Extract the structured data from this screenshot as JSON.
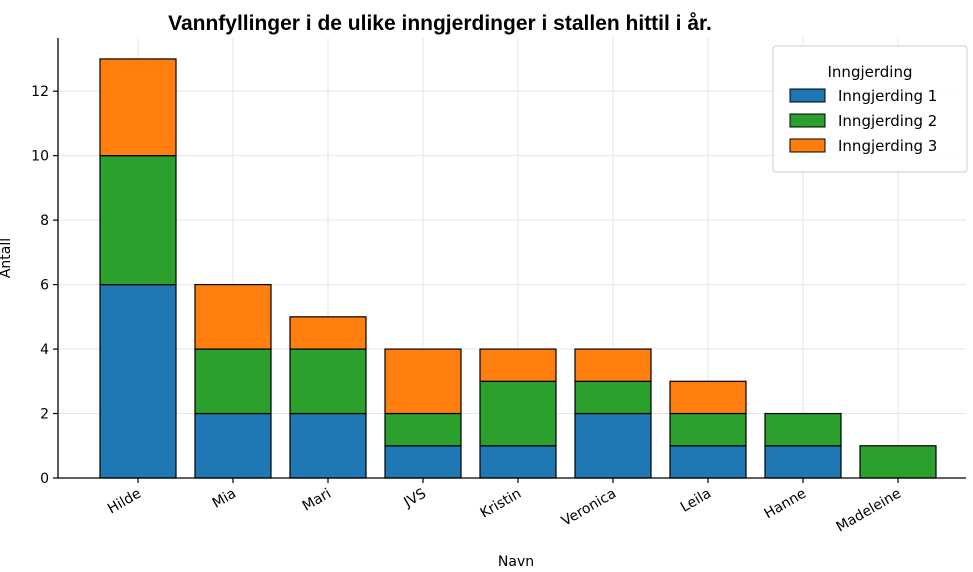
{
  "chart_data": {
    "type": "bar",
    "stacked": true,
    "title": "Vannfyllinger i de ulike inngjerdinger i stallen hittil i år.",
    "xlabel": "Navn",
    "ylabel": "Antall",
    "categories": [
      "Hilde",
      "Mia",
      "Mari",
      "JVS",
      "Kristin",
      "Veronica",
      "Leila",
      "Hanne",
      "Madeleine"
    ],
    "series": [
      {
        "name": "Inngjerding 1",
        "color": "#1f77b4",
        "values": [
          6,
          2,
          2,
          1,
          1,
          2,
          1,
          1,
          0
        ]
      },
      {
        "name": "Inngjerding 2",
        "color": "#2ca02c",
        "values": [
          4,
          2,
          2,
          1,
          2,
          1,
          1,
          1,
          1
        ]
      },
      {
        "name": "Inngjerding 3",
        "color": "#ff7f0e",
        "values": [
          3,
          2,
          1,
          2,
          1,
          1,
          1,
          0,
          0
        ]
      }
    ],
    "ylim": [
      0,
      13.65
    ],
    "yticks": [
      0,
      2,
      4,
      6,
      8,
      10,
      12
    ],
    "grid": true,
    "legend": {
      "title": "Inngjerding",
      "placement": "top-right"
    }
  }
}
